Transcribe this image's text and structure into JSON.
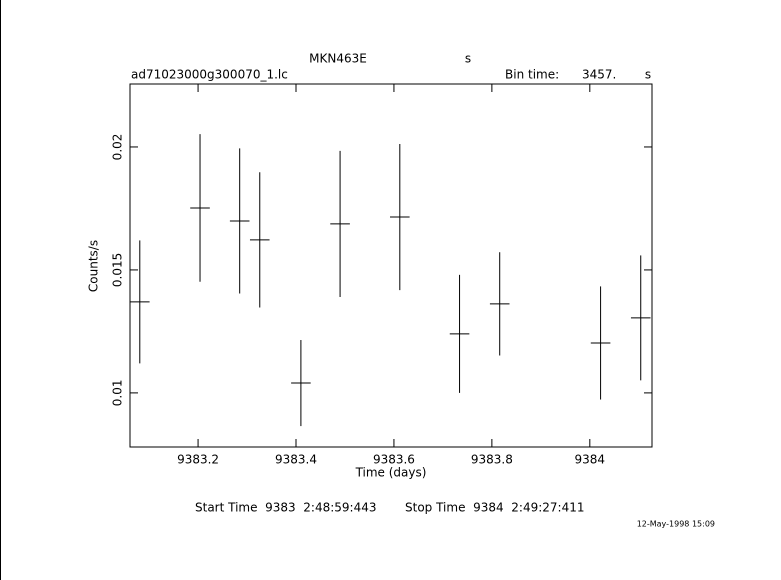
{
  "chart_data": {
    "type": "errorbar",
    "title": "MKN463E",
    "title_unit": "s",
    "file_name": "ad71023000g300070_1.lc",
    "bin_time_label": "Bin time:",
    "bin_time": "3457.",
    "bin_time_unit": "s",
    "x_label": "Time (days)",
    "y_label": "Counts/s",
    "start_time": "Start Time  9383  2:48:59:443",
    "stop_time": "Stop Time  9384  2:49:27:411",
    "timestamp": "12-May-1998 15:09",
    "xlim": [
      9383.061,
      9384.127
    ],
    "ylim": [
      0.0078,
      0.02256
    ],
    "xticks": [
      9383.2,
      9383.4,
      9383.6,
      9383.8,
      9384
    ],
    "yticks": [
      0.01,
      0.015,
      0.02
    ],
    "color": "#000000",
    "x": [
      9383.081,
      9383.204,
      9383.285,
      9383.326,
      9383.41,
      9383.49,
      9383.612,
      9383.734,
      9383.816,
      9384.022,
      9384.104
    ],
    "xerr": [
      0.02,
      0.02,
      0.02,
      0.02,
      0.02,
      0.02,
      0.02,
      0.02,
      0.02,
      0.02,
      0.02
    ],
    "values": [
      0.0137,
      0.01752,
      0.01699,
      0.01622,
      0.0104,
      0.01687,
      0.01715,
      0.0124,
      0.01362,
      0.01203,
      0.01305
    ],
    "errors": [
      0.0025,
      0.003,
      0.00295,
      0.00275,
      0.00175,
      0.00297,
      0.00297,
      0.0024,
      0.0021,
      0.0023,
      0.00254
    ]
  }
}
